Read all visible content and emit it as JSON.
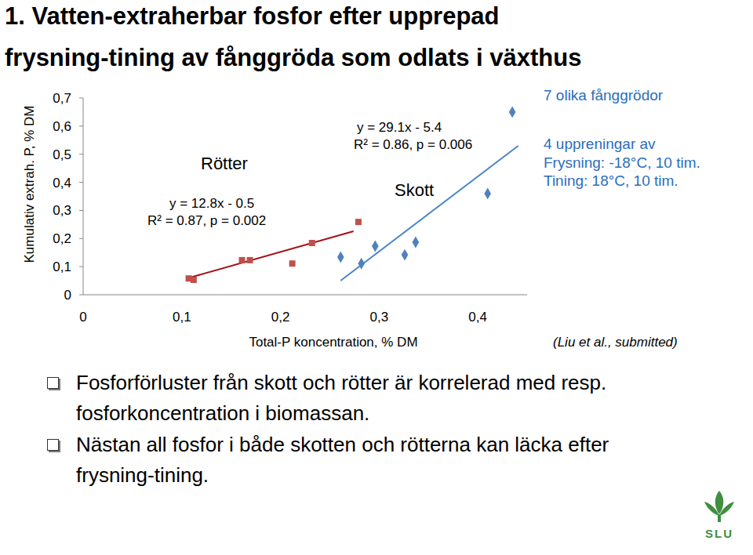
{
  "title": "1. Vatten-extraherbar fosfor efter upprepad\nfrysning-tining av fånggröda som odlats i växthus",
  "chart_data": {
    "type": "scatter",
    "x_label": "Total-P koncentration, % DM",
    "y_label": "Kumulativ extrah. P, % DM",
    "xlim": [
      0,
      0.45
    ],
    "xticks": [
      0,
      {
        "value": 0.1,
        "label": "0,1"
      },
      {
        "value": 0.2,
        "label": "0,2"
      },
      {
        "value": 0.3,
        "label": "0,3"
      },
      {
        "value": 0.4,
        "label": "0,4"
      }
    ],
    "ylim": [
      0,
      0.7
    ],
    "yticks": [
      0,
      {
        "value": 0.1,
        "label": "0,1"
      },
      {
        "value": 0.2,
        "label": "0,2"
      },
      {
        "value": 0.3,
        "label": "0,3"
      },
      {
        "value": 0.4,
        "label": "0,4"
      },
      {
        "value": 0.5,
        "label": "0,5"
      },
      {
        "value": 0.6,
        "label": "0,6"
      },
      {
        "value": 0.7,
        "label": "0,7"
      }
    ],
    "grid": false,
    "series": [
      {
        "name": "Rötter",
        "color": "#c0504d",
        "marker": "square",
        "x": [
          0.107,
          0.112,
          0.161,
          0.169,
          0.212,
          0.232,
          0.279
        ],
        "values": [
          0.058,
          0.053,
          0.123,
          0.123,
          0.111,
          0.184,
          0.259
        ],
        "trendline": {
          "color": "#a50f15",
          "x": [
            0.106,
            0.274
          ],
          "values": [
            0.059,
            0.226
          ],
          "equation": "y = 12.8x - 0.5",
          "stats": "R² = 0.87, p = 0.002"
        }
      },
      {
        "name": "Skott",
        "color": "#4f81bd",
        "marker": "diamond",
        "x": [
          0.261,
          0.282,
          0.296,
          0.326,
          0.337,
          0.41,
          0.435
        ],
        "values": [
          0.134,
          0.111,
          0.173,
          0.142,
          0.187,
          0.36,
          0.65
        ],
        "trendline": {
          "color": "#4a86c8",
          "x": [
            0.261,
            0.441
          ],
          "values": [
            0.05,
            0.53
          ],
          "equation": "y = 29.1x - 5.4",
          "stats": "R² = 0.86, p = 0.006"
        }
      }
    ]
  },
  "side_notes": [
    "7 olika fånggrödor",
    "4 uppreningar av",
    "Frysning: -18°C, 10 tim.",
    "Tining: 18°C, 10 tim."
  ],
  "source": "(Liu et al., submitted)",
  "bullets": [
    "Fosforförluster från skott och rötter är korrelerad med resp. fosforkoncentration i biomassan.",
    "Nästan all fosfor i både skotten och rötterna kan läcka efter frysning-tining."
  ],
  "logo_text": "SLU"
}
